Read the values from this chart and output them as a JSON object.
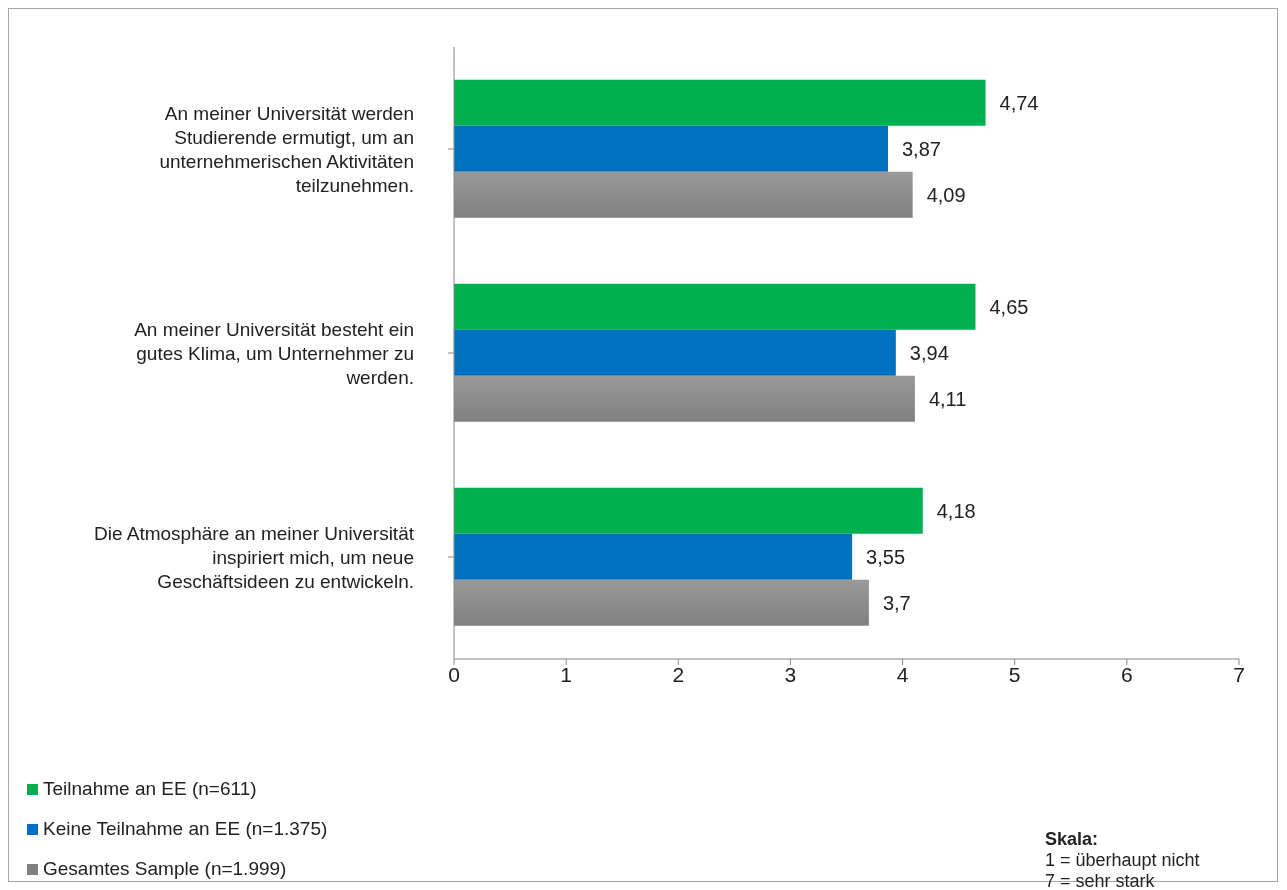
{
  "chart_data": {
    "type": "bar",
    "orientation": "horizontal",
    "categories": [
      "An meiner Universität werden Studierende ermutigt, um an unternehmerischen Aktivitäten teilzunehmen.",
      "An meiner Universität besteht ein gutes Klima, um Unternehmer zu werden.",
      "Die Atmosphäre an meiner Universität inspiriert mich, um neue Geschäftsideen zu entwickeln."
    ],
    "series": [
      {
        "name": "Teilnahme an EE (n=611)",
        "color": "#00b050",
        "values": [
          4.74,
          4.65,
          4.18
        ],
        "value_labels": [
          "4,74",
          "4,65",
          "4,18"
        ]
      },
      {
        "name": "Keine Teilnahme an EE (n=1.375)",
        "color": "#0070c0",
        "values": [
          3.87,
          3.94,
          3.55
        ],
        "value_labels": [
          "3,87",
          "3,94",
          "3,55"
        ]
      },
      {
        "name": "Gesamtes Sample (n=1.999)",
        "color": "#808080",
        "values": [
          4.09,
          4.11,
          3.7
        ],
        "value_labels": [
          "4,09",
          "4,11",
          "3,7"
        ]
      }
    ],
    "xlim": [
      0,
      7
    ],
    "xticks": [
      0,
      1,
      2,
      3,
      4,
      5,
      6,
      7
    ],
    "grid": false,
    "legend": "bottom left",
    "annotations": [
      "Skala:",
      "1 = überhaupt nicht",
      "7 = sehr stark"
    ]
  }
}
